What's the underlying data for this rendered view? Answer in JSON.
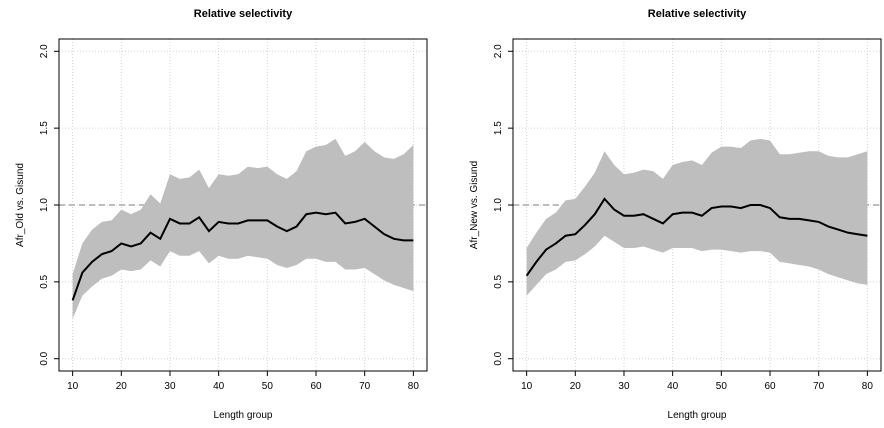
{
  "chart_data": [
    {
      "type": "line",
      "title": "Relative selectivity",
      "x_label": "Length group",
      "y_label": "Afr_Old  vs.  Gisund",
      "x": [
        10,
        12,
        14,
        16,
        18,
        20,
        22,
        24,
        26,
        28,
        30,
        32,
        34,
        36,
        38,
        40,
        42,
        44,
        46,
        48,
        50,
        52,
        54,
        56,
        58,
        60,
        62,
        64,
        66,
        68,
        70,
        72,
        74,
        76,
        78,
        80
      ],
      "series": [
        {
          "color": "#000000",
          "values": [
            0.38,
            0.56,
            0.63,
            0.68,
            0.7,
            0.75,
            0.73,
            0.75,
            0.82,
            0.78,
            0.91,
            0.88,
            0.88,
            0.92,
            0.83,
            0.89,
            0.88,
            0.88,
            0.9,
            0.9,
            0.9,
            0.86,
            0.83,
            0.86,
            0.94,
            0.95,
            0.94,
            0.95,
            0.88,
            0.89,
            0.91,
            0.86,
            0.81,
            0.78,
            0.77,
            0.77
          ],
          "lower": [
            0.26,
            0.41,
            0.47,
            0.52,
            0.54,
            0.58,
            0.57,
            0.58,
            0.64,
            0.6,
            0.7,
            0.67,
            0.67,
            0.7,
            0.62,
            0.67,
            0.65,
            0.65,
            0.67,
            0.66,
            0.65,
            0.61,
            0.59,
            0.61,
            0.65,
            0.65,
            0.63,
            0.63,
            0.58,
            0.58,
            0.59,
            0.55,
            0.51,
            0.48,
            0.46,
            0.44
          ],
          "upper": [
            0.55,
            0.75,
            0.84,
            0.89,
            0.9,
            0.97,
            0.94,
            0.97,
            1.07,
            1.01,
            1.2,
            1.17,
            1.18,
            1.23,
            1.11,
            1.2,
            1.19,
            1.2,
            1.25,
            1.24,
            1.25,
            1.2,
            1.17,
            1.22,
            1.35,
            1.38,
            1.39,
            1.43,
            1.32,
            1.35,
            1.41,
            1.35,
            1.31,
            1.3,
            1.33,
            1.39
          ],
          "band_color": "#bebebe"
        }
      ],
      "reference_line": {
        "value": 1,
        "color": "#bebebe"
      },
      "xlim": [
        7.2,
        82.8
      ],
      "xticks": [
        10,
        20,
        30,
        40,
        50,
        60,
        70,
        80
      ],
      "ylim": [
        -0.08,
        2.08
      ],
      "yticks": [
        {
          "value": 0,
          "label": "0.0"
        },
        0.5,
        {
          "value": 1,
          "label": "1.0"
        },
        1.5,
        {
          "value": 2,
          "label": "2.0"
        }
      ],
      "grid": true
    },
    {
      "type": "line",
      "title": "Relative selectivity",
      "x_label": "Length group",
      "y_label": "Afr_New  vs.  Gisund",
      "x": [
        10,
        12,
        14,
        16,
        18,
        20,
        22,
        24,
        26,
        28,
        30,
        32,
        34,
        36,
        38,
        40,
        42,
        44,
        46,
        48,
        50,
        52,
        54,
        56,
        58,
        60,
        62,
        64,
        66,
        68,
        70,
        72,
        74,
        76,
        78,
        80
      ],
      "series": [
        {
          "color": "#000000",
          "values": [
            0.54,
            0.63,
            0.71,
            0.75,
            0.8,
            0.81,
            0.87,
            0.94,
            1.04,
            0.97,
            0.93,
            0.93,
            0.94,
            0.91,
            0.88,
            0.94,
            0.95,
            0.95,
            0.93,
            0.98,
            0.99,
            0.99,
            0.98,
            1.0,
            1.0,
            0.98,
            0.92,
            0.91,
            0.91,
            0.9,
            0.89,
            0.86,
            0.84,
            0.82,
            0.81,
            0.8
          ],
          "lower": [
            0.41,
            0.48,
            0.55,
            0.58,
            0.63,
            0.64,
            0.68,
            0.73,
            0.8,
            0.76,
            0.72,
            0.72,
            0.73,
            0.71,
            0.69,
            0.72,
            0.72,
            0.72,
            0.7,
            0.71,
            0.71,
            0.7,
            0.69,
            0.7,
            0.7,
            0.69,
            0.63,
            0.62,
            0.61,
            0.6,
            0.58,
            0.55,
            0.53,
            0.51,
            0.49,
            0.48
          ],
          "upper": [
            0.72,
            0.82,
            0.91,
            0.95,
            1.03,
            1.04,
            1.12,
            1.21,
            1.35,
            1.26,
            1.2,
            1.21,
            1.23,
            1.22,
            1.17,
            1.26,
            1.28,
            1.29,
            1.26,
            1.34,
            1.38,
            1.38,
            1.37,
            1.42,
            1.43,
            1.42,
            1.33,
            1.33,
            1.34,
            1.35,
            1.35,
            1.32,
            1.31,
            1.31,
            1.33,
            1.35
          ],
          "band_color": "#bebebe"
        }
      ],
      "reference_line": {
        "value": 1,
        "color": "#bebebe"
      },
      "xlim": [
        7.2,
        82.8
      ],
      "xticks": [
        10,
        20,
        30,
        40,
        50,
        60,
        70,
        80
      ],
      "ylim": [
        -0.08,
        2.08
      ],
      "yticks": [
        {
          "value": 0,
          "label": "0.0"
        },
        0.5,
        {
          "value": 1,
          "label": "1.0"
        },
        1.5,
        {
          "value": 2,
          "label": "2.0"
        }
      ],
      "grid": true
    }
  ]
}
